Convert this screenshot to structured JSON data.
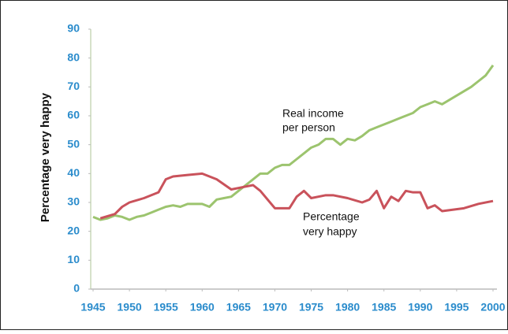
{
  "chart_data": {
    "type": "line",
    "ylabel": "Percentage very happy",
    "annotations": [
      {
        "lines": [
          "Real income",
          "per person"
        ]
      },
      {
        "lines": [
          "Percentage",
          "very happy"
        ]
      }
    ],
    "xlim": [
      1945,
      2000
    ],
    "xticks": [
      1945,
      1950,
      1955,
      1960,
      1965,
      1970,
      1975,
      1980,
      1985,
      1990,
      1995,
      2000
    ],
    "ylim": [
      0,
      90
    ],
    "yticks": [
      0,
      10,
      20,
      30,
      40,
      50,
      60,
      70,
      80,
      90
    ],
    "series": [
      {
        "color": "#9cc46e",
        "x": [
          1945,
          1946,
          1947,
          1948,
          1949,
          1950,
          1951,
          1952,
          1953,
          1954,
          1955,
          1956,
          1957,
          1958,
          1959,
          1960,
          1961,
          1962,
          1963,
          1964,
          1965,
          1966,
          1967,
          1968,
          1969,
          1970,
          1971,
          1972,
          1973,
          1974,
          1975,
          1976,
          1977,
          1978,
          1979,
          1980,
          1981,
          1982,
          1983,
          1984,
          1985,
          1986,
          1987,
          1988,
          1989,
          1990,
          1991,
          1992,
          1993,
          1994,
          1995,
          1996,
          1997,
          1998,
          1999,
          2000
        ],
        "values": [
          25,
          24,
          24.5,
          25.5,
          25,
          24,
          25,
          25.5,
          26.5,
          27.5,
          28.5,
          29,
          28.5,
          29.5,
          29.5,
          29.5,
          28.5,
          31,
          31.5,
          32,
          34,
          36,
          38,
          40,
          40,
          42,
          43,
          43,
          45,
          47,
          49,
          50,
          52,
          52,
          50,
          52,
          51.5,
          53,
          55,
          56,
          57,
          58,
          59,
          60,
          61,
          63,
          64,
          65,
          64,
          65.5,
          67,
          68.5,
          70,
          72,
          74,
          77.5
        ]
      },
      {
        "color": "#c9525b",
        "x": [
          1946,
          1948,
          1949,
          1950,
          1952,
          1954,
          1955,
          1956,
          1958,
          1960,
          1962,
          1964,
          1966,
          1967,
          1968,
          1970,
          1972,
          1973,
          1974,
          1975,
          1977,
          1978,
          1980,
          1982,
          1983,
          1984,
          1985,
          1986,
          1987,
          1988,
          1989,
          1990,
          1991,
          1992,
          1993,
          1996,
          1998,
          2000
        ],
        "values": [
          24.5,
          26,
          28.5,
          30,
          31.5,
          33.5,
          38,
          39,
          39.5,
          40,
          38,
          34.5,
          35.5,
          36,
          34,
          28,
          28,
          32,
          34,
          31.5,
          32.5,
          32.5,
          31.5,
          30,
          31,
          34,
          28,
          32,
          30.5,
          34,
          33.5,
          33.5,
          28,
          29,
          27,
          28,
          29.5,
          30.5
        ]
      }
    ]
  }
}
